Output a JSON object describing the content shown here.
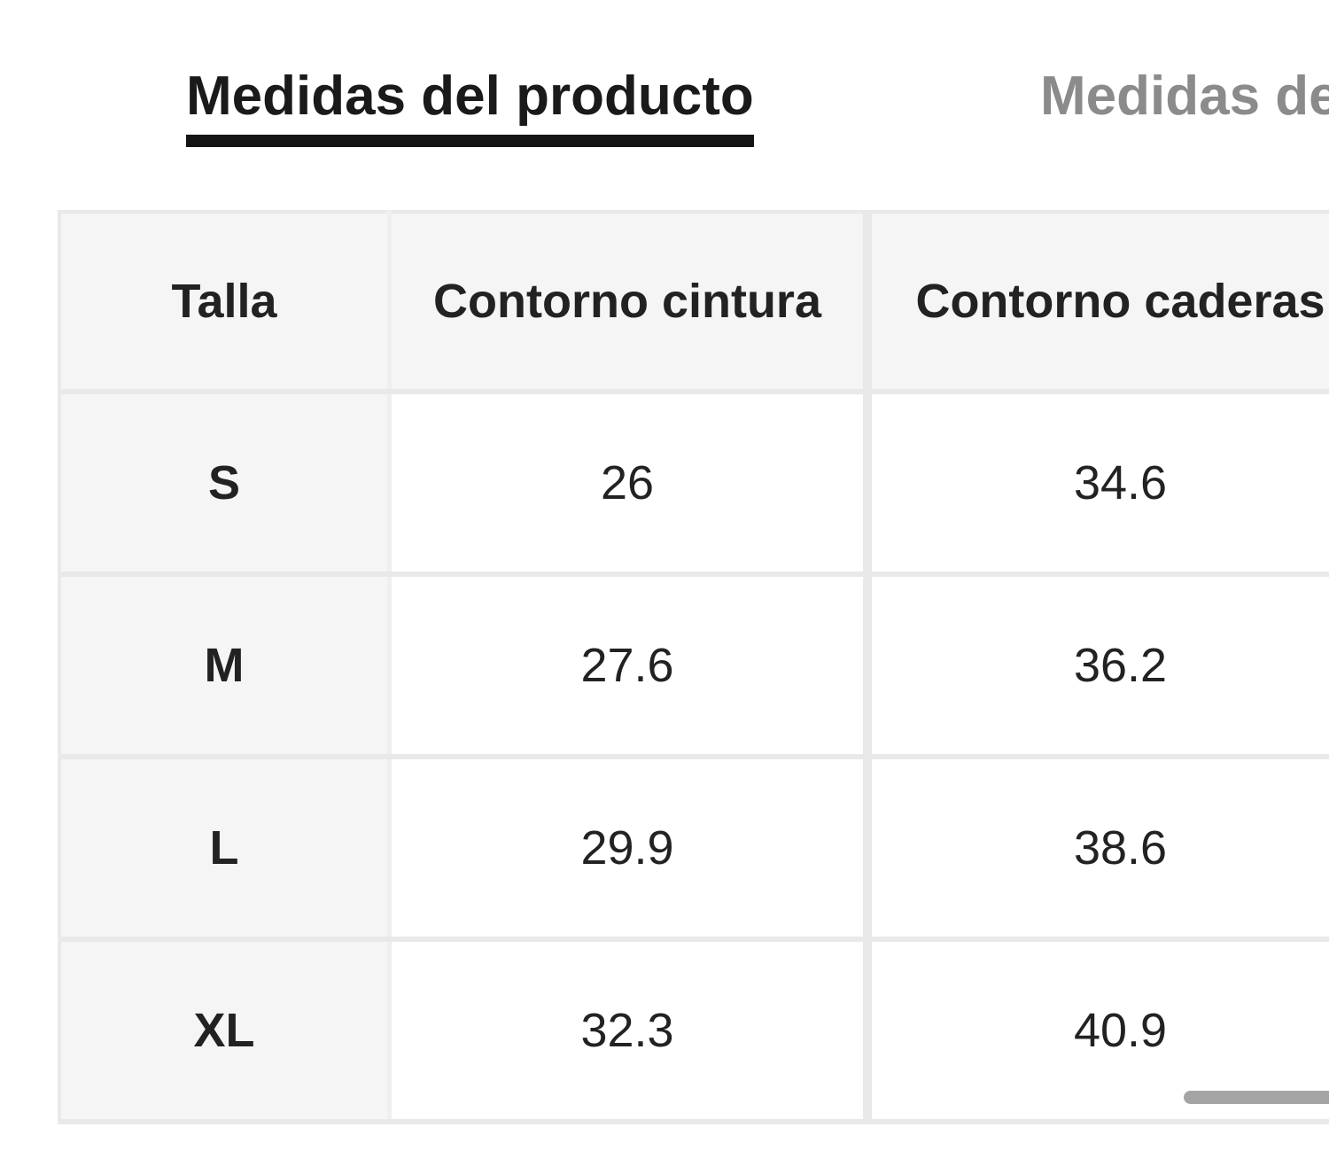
{
  "tabs": {
    "product_tab_label": "Medidas del producto",
    "body_tab_visible_label": "Medidas de"
  },
  "size_table": {
    "headers": [
      "Talla",
      "Contorno cintura",
      "Contorno caderas"
    ],
    "rows": [
      [
        "S",
        "26",
        "34.6"
      ],
      [
        "M",
        "27.6",
        "36.2"
      ],
      [
        "L",
        "29.9",
        "38.6"
      ],
      [
        "XL",
        "32.3",
        "40.9"
      ]
    ]
  },
  "colors": {
    "active_tab_text": "#1a1a1a",
    "tab_underline": "#141414",
    "inactive_tab_text": "#8b8b8b",
    "header_cell_bg": "#f5f5f5",
    "row_label_bg": "#f5f5f5",
    "data_cell_bg": "#ffffff",
    "table_border": "#e9e9e9",
    "scrollbar_thumb": "#a4a4a4"
  }
}
